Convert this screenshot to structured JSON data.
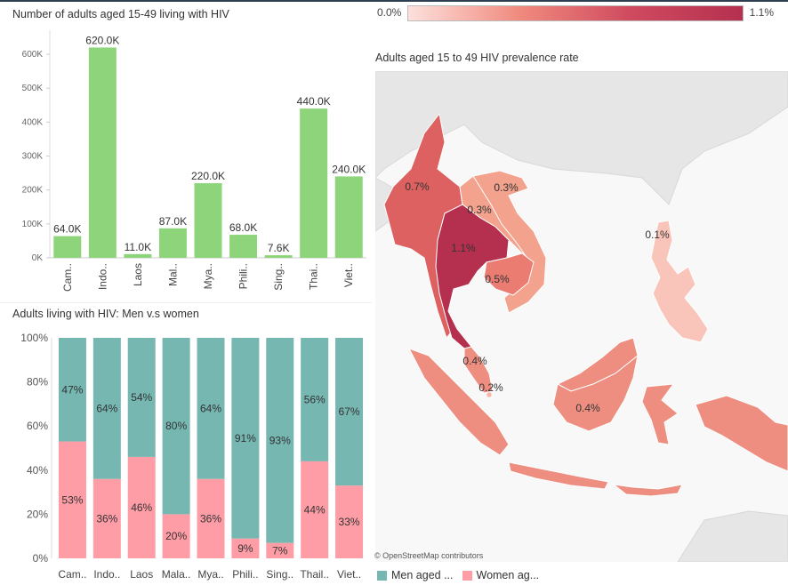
{
  "colors": {
    "green_bar": "#8ed47a",
    "men": "#76b7b2",
    "women": "#ff9da7",
    "map_scale_low": "#fde0dc",
    "map_scale_high": "#b5304f",
    "land": "#e8e8e8",
    "sea": "#f8f8f8"
  },
  "legend_scale": {
    "low": "0.0%",
    "high": "1.1%"
  },
  "map": {
    "title": "Adults aged 15 to 49 HIV prevalence rate",
    "attribution": "© OpenStreetMap contributors",
    "labels": [
      {
        "country": "Myanmar",
        "value": "0.7%"
      },
      {
        "country": "Laos",
        "value": "0.3%"
      },
      {
        "country": "Vietnam",
        "value": "0.3%"
      },
      {
        "country": "Thailand",
        "value": "1.1%"
      },
      {
        "country": "Cambodia",
        "value": "0.5%"
      },
      {
        "country": "Philippines",
        "value": "0.1%"
      },
      {
        "country": "Malaysia",
        "value": "0.4%"
      },
      {
        "country": "Singapore",
        "value": "0.2%"
      },
      {
        "country": "Indonesia",
        "value": "0.4%"
      }
    ]
  },
  "chart_data": [
    {
      "type": "bar",
      "title": "Number of adults aged 15-49 living with HIV",
      "categories": [
        "Cam..",
        "Indo..",
        "Laos",
        "Mal..",
        "Mya..",
        "Phili..",
        "Sing..",
        "Thai..",
        "Viet.."
      ],
      "values": [
        64000,
        620000,
        11000,
        87000,
        220000,
        68000,
        7600,
        440000,
        240000
      ],
      "data_labels": [
        "64.0K",
        "620.0K",
        "11.0K",
        "87.0K",
        "220.0K",
        "68.0K",
        "7.6K",
        "440.0K",
        "240.0K"
      ],
      "yticks": [
        0,
        100000,
        200000,
        300000,
        400000,
        500000,
        600000
      ],
      "ytick_labels": [
        "0K",
        "100K",
        "200K",
        "300K",
        "400K",
        "500K",
        "600K"
      ],
      "ylim": [
        0,
        650000
      ],
      "grid": false
    },
    {
      "type": "bar",
      "stacked": true,
      "percent": true,
      "title": "Adults living with HIV: Men v.s women",
      "categories": [
        "Cam..",
        "Indo..",
        "Laos",
        "Mala..",
        "Mya..",
        "Phili..",
        "Sing..",
        "Thail..",
        "Viet.."
      ],
      "series": [
        {
          "name": "Women ag...",
          "values": [
            53,
            36,
            46,
            20,
            36,
            9,
            7,
            44,
            33
          ]
        },
        {
          "name": "Men aged ...",
          "values": [
            47,
            64,
            54,
            80,
            64,
            91,
            93,
            56,
            67
          ]
        }
      ],
      "yticks": [
        0,
        20,
        40,
        60,
        80,
        100
      ],
      "ytick_labels": [
        "0%",
        "20%",
        "40%",
        "60%",
        "80%",
        "100%"
      ],
      "ylim": [
        0,
        100
      ],
      "legend_position": "bottom",
      "legend": [
        "Men aged ...",
        "Women ag..."
      ]
    },
    {
      "type": "heatmap",
      "title": "Adults aged 15 to 49 HIV prevalence rate",
      "categories": [
        "Myanmar",
        "Laos",
        "Vietnam",
        "Thailand",
        "Cambodia",
        "Philippines",
        "Malaysia",
        "Singapore",
        "Indonesia"
      ],
      "values": [
        0.7,
        0.3,
        0.3,
        1.1,
        0.5,
        0.1,
        0.4,
        0.2,
        0.4
      ],
      "scale_range": [
        0.0,
        1.1
      ]
    }
  ]
}
